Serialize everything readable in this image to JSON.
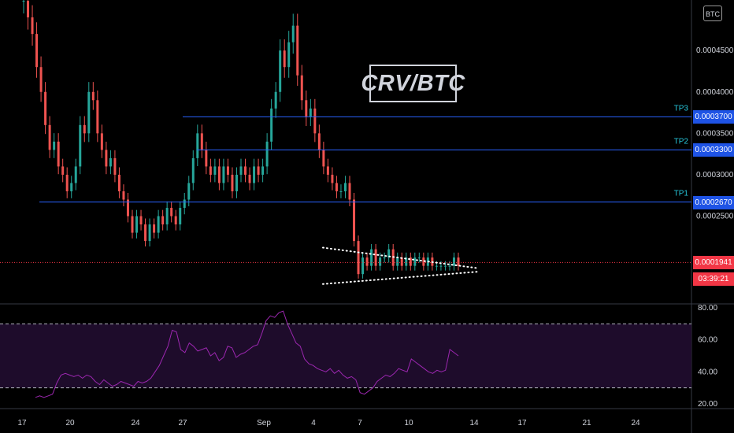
{
  "chart_data": [
    {
      "type": "candlestick",
      "title": "CRV/BTC",
      "currency_badge": "BTC",
      "y_tick_labels": [
        "0.0004500",
        "0.0004000",
        "0.0003500",
        "0.0003000",
        "0.0002500"
      ],
      "y_ticks": [
        0.00045,
        0.0004,
        0.00035,
        0.0003,
        0.00025
      ],
      "ylim": [
        0.000145,
        0.000511
      ],
      "x_tick_labels": [
        "17",
        "20",
        "24",
        "27",
        "Sep",
        "4",
        "7",
        "10",
        "14",
        "17",
        "21",
        "24"
      ],
      "target_levels": [
        {
          "name": "TP3",
          "value": 0.00037,
          "label": "0.0003700"
        },
        {
          "name": "TP2",
          "value": 0.00033,
          "label": "0.0003300"
        },
        {
          "name": "TP1",
          "value": 0.000267,
          "label": "0.0002670"
        }
      ],
      "current_price": {
        "value": 0.0001941,
        "label": "0.0001941",
        "countdown": "03:39:21"
      },
      "triangle": {
        "upper": [
          [
            0.000212,
            0
          ],
          [
            0.000187,
            1
          ]
        ],
        "lower": [
          [
            0.000168,
            0
          ],
          [
            0.000183,
            1
          ]
        ]
      },
      "colors": {
        "up": "#26a69a",
        "down": "#ef5350",
        "level_line": "#2962ff",
        "level_label_bg": "#1e53e5",
        "level_text": "#26c6da",
        "current_price": "#f23645",
        "rsi_line": "#9c27b0"
      },
      "close_series": [
        0.00051,
        0.00049,
        0.00047,
        0.00043,
        0.0004,
        0.00036,
        0.00033,
        0.00034,
        0.00031,
        0.0003,
        0.00028,
        0.00029,
        0.00031,
        0.00036,
        0.00035,
        0.0004,
        0.00039,
        0.00035,
        0.00033,
        0.00031,
        0.00032,
        0.0003,
        0.00028,
        0.00027,
        0.00025,
        0.00023,
        0.00025,
        0.00024,
        0.00022,
        0.00024,
        0.00023,
        0.00025,
        0.00024,
        0.00026,
        0.00025,
        0.00024,
        0.00026,
        0.00027,
        0.00029,
        0.00032,
        0.00035,
        0.00033,
        0.00031,
        0.0003,
        0.00031,
        0.00029,
        0.00031,
        0.0003,
        0.00028,
        0.0003,
        0.00031,
        0.0003,
        0.00029,
        0.00031,
        0.0003,
        0.00031,
        0.00034,
        0.00038,
        0.0004,
        0.00045,
        0.00043,
        0.00046,
        0.00048,
        0.00042,
        0.00039,
        0.00037,
        0.00038,
        0.00035,
        0.00033,
        0.00031,
        0.0003,
        0.00029,
        0.00028,
        0.00028,
        0.00029,
        0.00027,
        0.00022,
        0.00018,
        0.0002,
        0.00019,
        0.00021,
        0.00019,
        0.0002,
        0.0002,
        0.00021,
        0.00019,
        0.0002,
        0.00019,
        0.0002,
        0.00019,
        0.0002,
        0.0002,
        0.00019,
        0.0002,
        0.00019,
        0.00019,
        0.00019,
        0.00019,
        0.00019,
        0.0002,
        0.00019
      ]
    },
    {
      "type": "line",
      "name": "RSI",
      "y_tick_labels": [
        "80.00",
        "60.00",
        "40.00",
        "20.00"
      ],
      "y_ticks": [
        80,
        60,
        40,
        20
      ],
      "ylim": [
        17,
        82
      ],
      "bands": [
        70,
        30
      ],
      "values": [
        24,
        25,
        24,
        25,
        26,
        33,
        38,
        39,
        38,
        37,
        38,
        36,
        38,
        37,
        34,
        32,
        35,
        33,
        31,
        32,
        34,
        33,
        32,
        31,
        34,
        33,
        34,
        36,
        40,
        44,
        50,
        56,
        66,
        65,
        54,
        52,
        58,
        56,
        53,
        54,
        55,
        50,
        52,
        47,
        49,
        56,
        55,
        49,
        51,
        52,
        54,
        56,
        57,
        64,
        72,
        75,
        74,
        77,
        78,
        70,
        64,
        58,
        56,
        48,
        45,
        44,
        42,
        41,
        40,
        42,
        39,
        41,
        38,
        36,
        37,
        35,
        27,
        26,
        28,
        30,
        34,
        36,
        38,
        37,
        39,
        42,
        41,
        40,
        48,
        46,
        44,
        42,
        40,
        39,
        41,
        40,
        41,
        54,
        52,
        50
      ]
    }
  ]
}
